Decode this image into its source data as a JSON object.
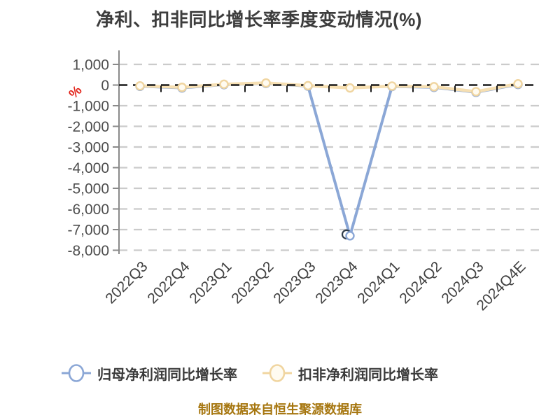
{
  "chart_data": {
    "type": "line",
    "title": "净利、扣非同比增长率季度变动情况(%)",
    "ylabel": "%",
    "categories": [
      "2022Q3",
      "2022Q4",
      "2023Q1",
      "2023Q2",
      "2023Q3",
      "2023Q4",
      "2024Q1",
      "2024Q2",
      "2024Q3",
      "2024Q4E"
    ],
    "series": [
      {
        "name": "归母净利润同比增长率",
        "color": "#8BA7D6",
        "marker_fill": "#FFFFFF",
        "dip_ring_color": "#2F3B49",
        "values": [
          -60,
          -140,
          20,
          80,
          -50,
          -7300,
          -70,
          -110,
          -350,
          30
        ]
      },
      {
        "name": "扣非净利润同比增长率",
        "color": "#F0D5A0",
        "line_color": "#F6DFB2",
        "marker_fill": "#FFFBF0",
        "values": [
          -40,
          -110,
          40,
          100,
          -30,
          -140,
          -50,
          -80,
          -320,
          60
        ]
      }
    ],
    "yticks": [
      1000,
      0,
      -1000,
      -2000,
      -3000,
      -4000,
      -5000,
      -6000,
      -7000,
      -8000
    ],
    "ylim": [
      -8000,
      1000
    ],
    "grid": "horizontal dashed",
    "zero_line": "black dashed",
    "legend_position": "bottom",
    "source_note": "制图数据来自恒生聚源数据库",
    "style": {
      "title_color": "#3D3D3D",
      "grid_color": "#CBCBCB",
      "axis_color": "#8A8A8A",
      "zero_line_color": "#1A1A1A",
      "ytick_color": "#4D4D4D",
      "xtick_color": "#414141",
      "unit_color": "#E2231A",
      "legend_text_color": "#3A3A3A",
      "source_color": "#A6760F",
      "background": "#FFFFFF"
    }
  }
}
